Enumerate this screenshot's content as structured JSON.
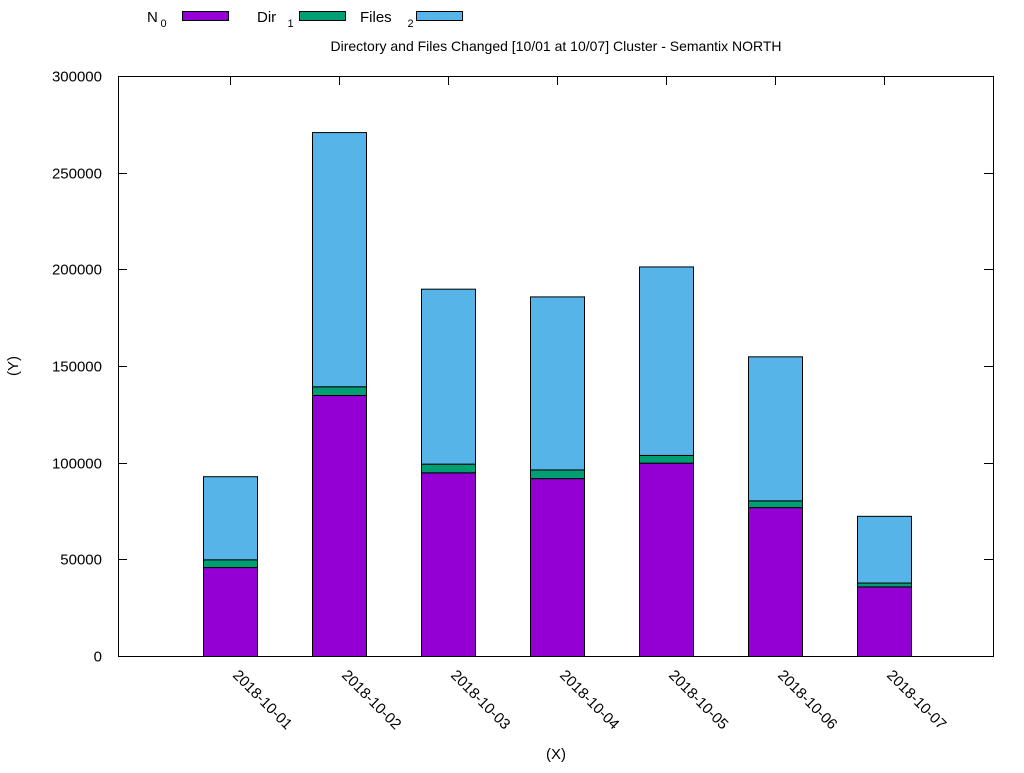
{
  "chart_data": {
    "type": "bar",
    "stacked": true,
    "title": "Directory and Files Changed [10/01 at 10/07] Cluster - Semantix NORTH",
    "xlabel": "(X)",
    "ylabel": "(Y)",
    "ylim": [
      0,
      300000
    ],
    "yticks": [
      "0",
      "50000",
      "100000",
      "150000",
      "200000",
      "250000",
      "300000"
    ],
    "categories": [
      "2018-10-01",
      "2018-10-02",
      "2018-10-03",
      "2018-10-04",
      "2018-10-05",
      "2018-10-06",
      "2018-10-07"
    ],
    "series": [
      {
        "name": "N",
        "subscript": "0",
        "color": "#9400d3",
        "values": [
          46000,
          135000,
          95000,
          92000,
          100000,
          77000,
          36000
        ]
      },
      {
        "name": "Dir",
        "subscript": "1",
        "color": "#009e73",
        "values": [
          4000,
          4500,
          4500,
          4500,
          4000,
          3500,
          2000
        ]
      },
      {
        "name": "Files",
        "subscript": "2",
        "color": "#56b4e9",
        "values": [
          43000,
          131500,
          90500,
          89500,
          97500,
          74500,
          34500
        ]
      }
    ],
    "legend_position": "top-left"
  }
}
